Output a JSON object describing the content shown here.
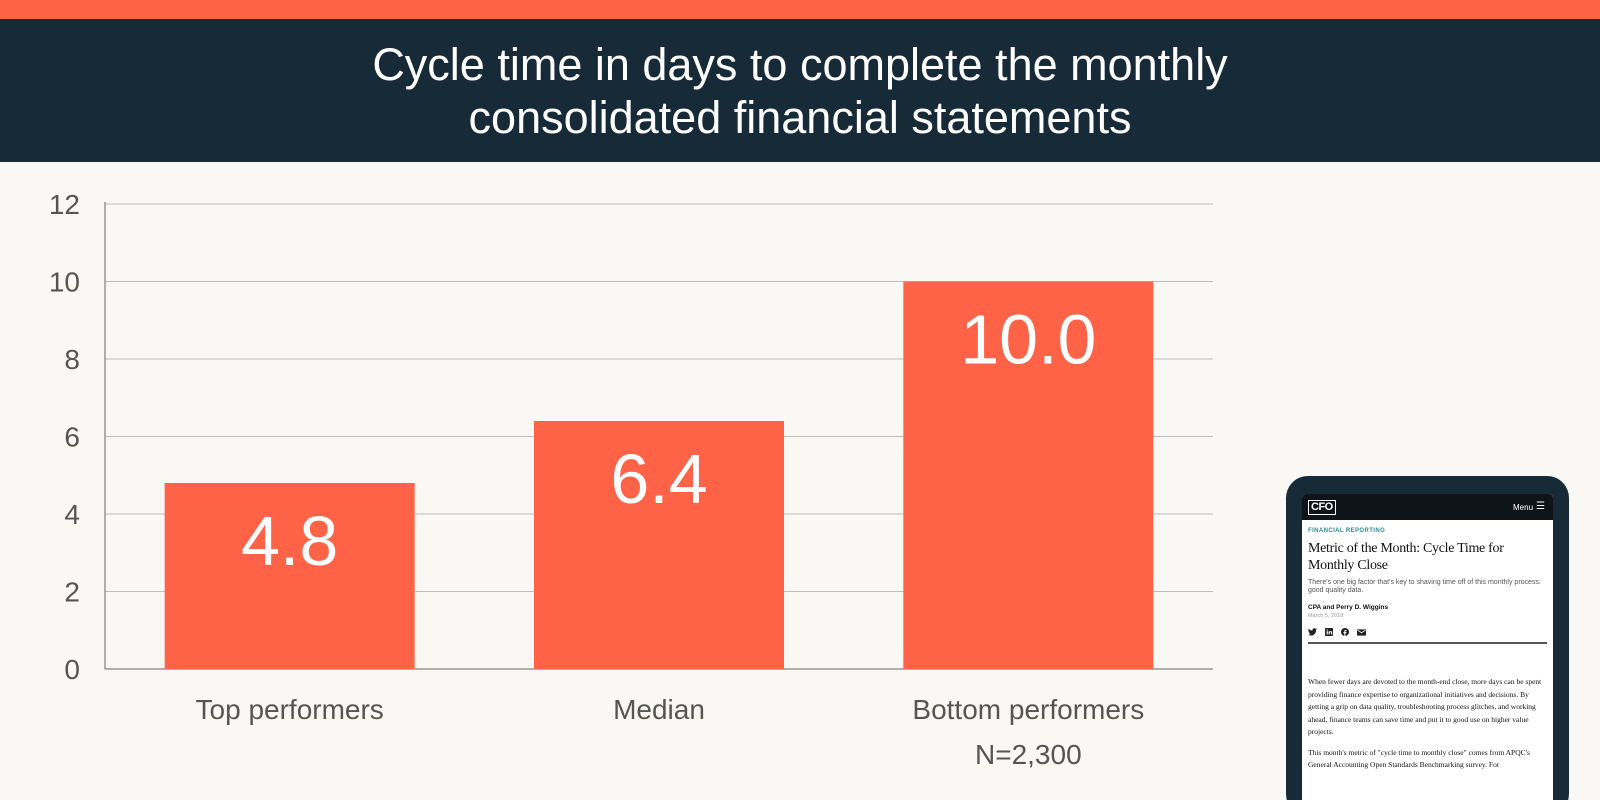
{
  "header": {
    "title": "Cycle time in days to complete the monthly consolidated financial statements"
  },
  "colors": {
    "accent": "#ff6347",
    "header_bg": "#172a37",
    "bar": "#ff6347",
    "page_bg": "#f9f8f5"
  },
  "chart_data": {
    "type": "bar",
    "title": "Cycle time in days to complete the monthly consolidated financial statements",
    "categories": [
      "Top performers",
      "Median",
      "Bottom performers"
    ],
    "values": [
      4.8,
      6.4,
      10.0
    ],
    "value_labels": [
      "4.8",
      "6.4",
      "10.0"
    ],
    "ylim": [
      0,
      12
    ],
    "yticks": [
      0,
      2,
      4,
      6,
      8,
      10,
      12
    ],
    "xlabel": "",
    "ylabel": "",
    "grid": true,
    "note": "N=2,300"
  },
  "phone": {
    "logo": "CFO",
    "menu_label": "Menu",
    "kicker": "FINANCIAL REPORTING",
    "article_title": "Metric of the Month: Cycle Time for Monthly Close",
    "dek": "There's one big factor that's key to shaving time off of this monthly process: good quality data.",
    "byline": "CPA and Perry D. Wiggins",
    "date": "March 5, 2018",
    "share_icons": [
      "twitter-icon",
      "linkedin-icon",
      "facebook-icon",
      "email-icon"
    ],
    "paragraph_1": "When fewer days are devoted to the month-end close, more days can be spent providing finance expertise to organizational initiatives and decisions. By getting a grip on data quality, troubleshooting process glitches, and working ahead, finance teams can save time and put it to good use on higher value projects.",
    "paragraph_2": "This month's metric of \"cycle time to monthly close\" comes from APQC's General Accounting Open Standards Benchmarking survey. For"
  }
}
